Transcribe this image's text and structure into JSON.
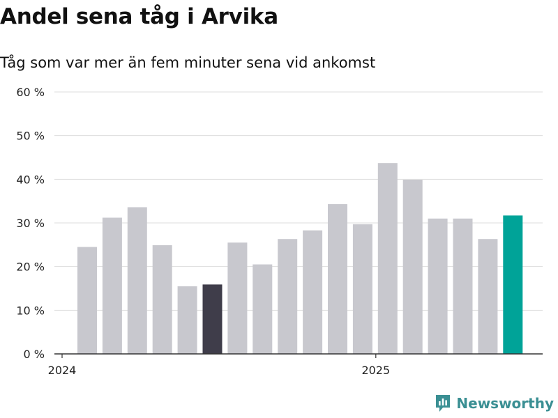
{
  "header": {
    "title": "Andel sena tåg i Arvika",
    "subtitle": "Tåg som var mer än fem minuter sena vid ankomst"
  },
  "brand": {
    "name": "Newsworthy",
    "icon": "newsworthy-logo-icon"
  },
  "colors": {
    "bar_default": "#c8c8ce",
    "bar_dark": "#3f3d4a",
    "bar_latest": "#00a398",
    "grid": "#dddddd",
    "axis": "#333333",
    "brand": "#3a8f93"
  },
  "chart_data": {
    "type": "bar",
    "title": "Andel sena tåg i Arvika",
    "subtitle": "Tåg som var mer än fem minuter sena vid ankomst",
    "xlabel": "",
    "ylabel": "",
    "ylim": [
      0,
      60
    ],
    "y_ticks": [
      0,
      10,
      20,
      30,
      40,
      50,
      60
    ],
    "y_tick_labels": [
      "0 %",
      "10 %",
      "20 %",
      "30 %",
      "40 %",
      "50 %",
      "60 %"
    ],
    "x_tick_labels": [
      {
        "label": "2024",
        "category": "2024-01"
      },
      {
        "label": "2025",
        "category": "2025-01"
      }
    ],
    "grid": true,
    "categories": [
      "2024-01",
      "2024-02",
      "2024-03",
      "2024-04",
      "2024-05",
      "2024-06",
      "2024-07",
      "2024-08",
      "2024-09",
      "2024-10",
      "2024-11",
      "2024-12",
      "2025-01",
      "2025-02",
      "2025-03",
      "2025-04",
      "2025-05",
      "2025-06"
    ],
    "values": [
      24.5,
      31.2,
      33.6,
      24.9,
      15.5,
      15.9,
      25.5,
      20.5,
      26.3,
      28.3,
      34.3,
      29.7,
      43.7,
      39.9,
      31.0,
      31.0,
      26.3,
      31.7
    ],
    "highlight": {
      "dark": [
        5
      ],
      "latest": [
        17
      ]
    }
  }
}
